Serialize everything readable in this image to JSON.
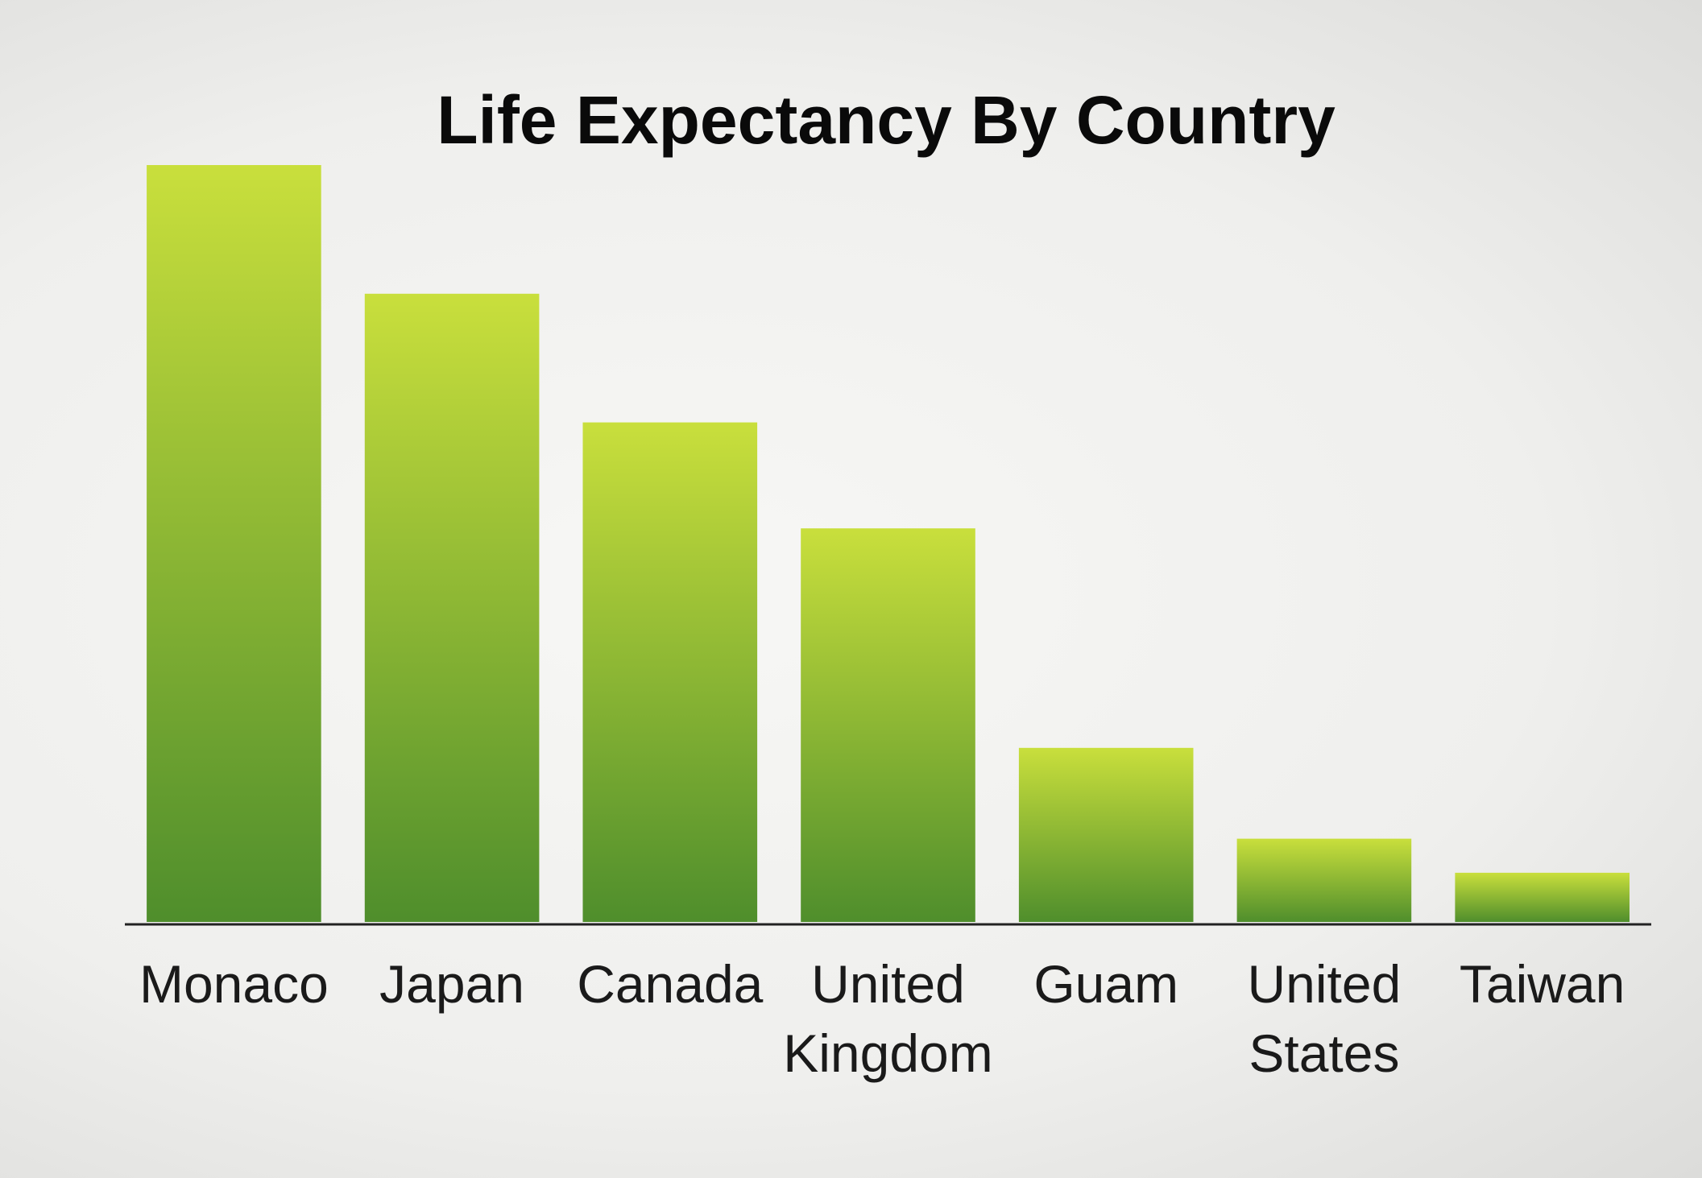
{
  "chart_data": {
    "type": "bar",
    "title": "Life Expectancy By Country",
    "categories": [
      [
        "Monaco"
      ],
      [
        "Japan"
      ],
      [
        "Canada"
      ],
      [
        "United",
        "Kingdom"
      ],
      [
        "Guam"
      ],
      [
        "United",
        "States"
      ],
      [
        "Taiwan"
      ]
    ],
    "values": [
      100,
      83,
      66,
      52,
      23,
      11,
      6.5
    ],
    "ylim": [
      0,
      100
    ],
    "xlabel": "",
    "ylabel": "",
    "grid": false,
    "colors": {
      "bar_top": "#c9df3c",
      "bar_bottom": "#4f8e2c",
      "axis": "#222222"
    }
  }
}
